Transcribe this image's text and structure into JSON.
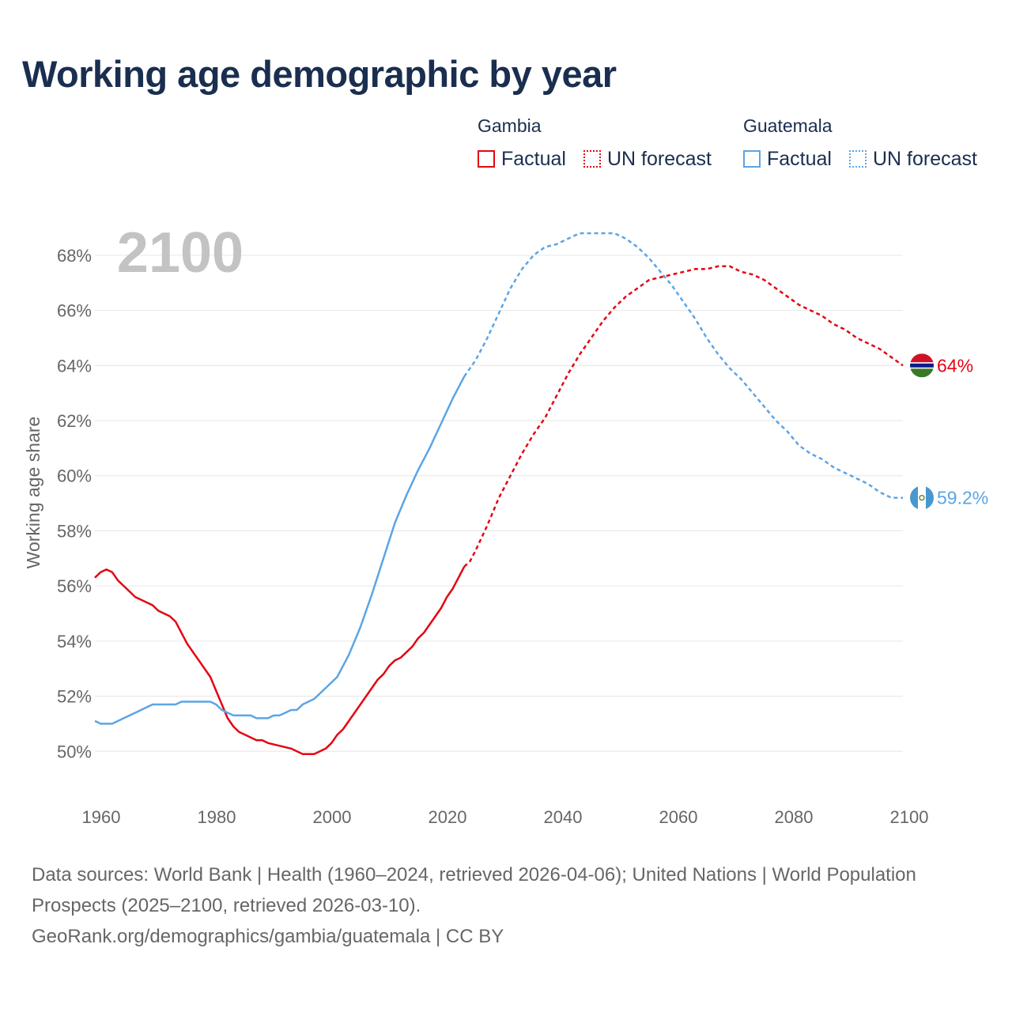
{
  "title": "Working age demographic by year",
  "legend": {
    "groups": [
      {
        "name": "Gambia",
        "color": "#e30613",
        "items": [
          {
            "label": "Factual",
            "style": "solid"
          },
          {
            "label": "UN forecast",
            "style": "dotted"
          }
        ]
      },
      {
        "name": "Guatemala",
        "color": "#5aa5e6",
        "items": [
          {
            "label": "Factual",
            "style": "solid"
          },
          {
            "label": "UN forecast",
            "style": "dotted"
          }
        ]
      }
    ]
  },
  "year_overlay": "2100",
  "sources": {
    "line1": "Data sources: World Bank | Health (1960–2024, retrieved 2026-04-06); United Nations | World Population Prospects (2025–2100, retrieved 2026-03-10).",
    "line2": "GeoRank.org/demographics/gambia/guatemala | CC BY"
  },
  "chart_data": {
    "type": "line",
    "title": "Working age demographic by year",
    "xlabel": "",
    "ylabel": "Working age share",
    "xlim": [
      1960,
      2100
    ],
    "ylim": [
      48.2,
      69.0
    ],
    "x_ticks": [
      1960,
      1980,
      2000,
      2020,
      2040,
      2060,
      2080,
      2100
    ],
    "y_ticks": [
      50,
      52,
      54,
      56,
      58,
      60,
      62,
      64,
      66,
      68
    ],
    "y_tick_labels": [
      "50%",
      "52%",
      "54%",
      "56%",
      "58%",
      "60%",
      "62%",
      "64%",
      "66%",
      "68%"
    ],
    "grid": true,
    "factual_end_year": 2024,
    "series": [
      {
        "name": "Gambia",
        "color": "#e30613",
        "end_label": "64%",
        "flag": "gambia",
        "x": [
          1960,
          1961,
          1962,
          1963,
          1964,
          1965,
          1967,
          1970,
          1971,
          1973,
          1974,
          1976,
          1978,
          1980,
          1981,
          1982,
          1983,
          1984,
          1985,
          1986,
          1987,
          1988,
          1989,
          1990,
          1992,
          1994,
          1996,
          1998,
          2000,
          2001,
          2002,
          2003,
          2005,
          2008,
          2009,
          2010,
          2011,
          2012,
          2013,
          2014,
          2015,
          2016,
          2017,
          2020,
          2021,
          2022,
          2023,
          2024,
          2025,
          2026,
          2028,
          2030,
          2032,
          2034,
          2036,
          2038,
          2040,
          2042,
          2044,
          2046,
          2048,
          2050,
          2052,
          2054,
          2056,
          2058,
          2060,
          2062,
          2064,
          2066,
          2068,
          2070,
          2072,
          2074,
          2076,
          2078,
          2080,
          2082,
          2084,
          2086,
          2088,
          2090,
          2092,
          2094,
          2096,
          2098,
          2100
        ],
        "values": [
          56.3,
          56.5,
          56.6,
          56.5,
          56.2,
          56.0,
          55.6,
          55.3,
          55.1,
          54.9,
          54.7,
          53.9,
          53.3,
          52.7,
          52.2,
          51.7,
          51.2,
          50.9,
          50.7,
          50.6,
          50.5,
          50.4,
          50.4,
          50.3,
          50.2,
          50.1,
          49.9,
          49.9,
          50.1,
          50.3,
          50.6,
          50.8,
          51.4,
          52.3,
          52.6,
          52.8,
          53.1,
          53.3,
          53.4,
          53.6,
          53.8,
          54.1,
          54.3,
          55.2,
          55.6,
          55.9,
          56.3,
          56.7,
          56.9,
          57.3,
          58.2,
          59.2,
          60.0,
          60.8,
          61.5,
          62.1,
          62.9,
          63.7,
          64.4,
          65.0,
          65.6,
          66.1,
          66.5,
          66.8,
          67.1,
          67.2,
          67.3,
          67.4,
          67.5,
          67.5,
          67.6,
          67.6,
          67.4,
          67.3,
          67.1,
          66.8,
          66.5,
          66.2,
          66.0,
          65.8,
          65.5,
          65.3,
          65.0,
          64.8,
          64.6,
          64.3,
          64.0
        ]
      },
      {
        "name": "Guatemala",
        "color": "#5aa5e6",
        "end_label": "59.2%",
        "flag": "guatemala",
        "x": [
          1960,
          1961,
          1963,
          1965,
          1967,
          1969,
          1970,
          1972,
          1974,
          1975,
          1977,
          1979,
          1980,
          1981,
          1982,
          1983,
          1984,
          1985,
          1987,
          1988,
          1990,
          1991,
          1992,
          1993,
          1994,
          1995,
          1996,
          1997,
          1998,
          2000,
          2002,
          2004,
          2006,
          2008,
          2010,
          2012,
          2014,
          2016,
          2018,
          2020,
          2022,
          2024,
          2025,
          2026,
          2028,
          2030,
          2032,
          2034,
          2036,
          2038,
          2040,
          2042,
          2044,
          2046,
          2048,
          2050,
          2052,
          2054,
          2056,
          2058,
          2060,
          2062,
          2064,
          2066,
          2068,
          2070,
          2072,
          2074,
          2076,
          2078,
          2080,
          2082,
          2084,
          2086,
          2088,
          2090,
          2092,
          2094,
          2096,
          2098,
          2100
        ],
        "values": [
          51.1,
          51.0,
          51.0,
          51.2,
          51.4,
          51.6,
          51.7,
          51.7,
          51.7,
          51.8,
          51.8,
          51.8,
          51.8,
          51.7,
          51.5,
          51.4,
          51.3,
          51.3,
          51.3,
          51.2,
          51.2,
          51.3,
          51.3,
          51.4,
          51.5,
          51.5,
          51.7,
          51.8,
          51.9,
          52.3,
          52.7,
          53.5,
          54.5,
          55.7,
          57.0,
          58.3,
          59.3,
          60.2,
          61.0,
          61.9,
          62.8,
          63.6,
          63.9,
          64.2,
          65.0,
          65.9,
          66.8,
          67.5,
          68.0,
          68.3,
          68.4,
          68.6,
          68.8,
          68.8,
          68.8,
          68.8,
          68.6,
          68.3,
          67.9,
          67.4,
          66.9,
          66.3,
          65.7,
          65.0,
          64.4,
          63.9,
          63.5,
          63.0,
          62.5,
          62.0,
          61.6,
          61.1,
          60.8,
          60.6,
          60.3,
          60.1,
          59.9,
          59.7,
          59.4,
          59.2,
          59.2
        ]
      }
    ]
  }
}
